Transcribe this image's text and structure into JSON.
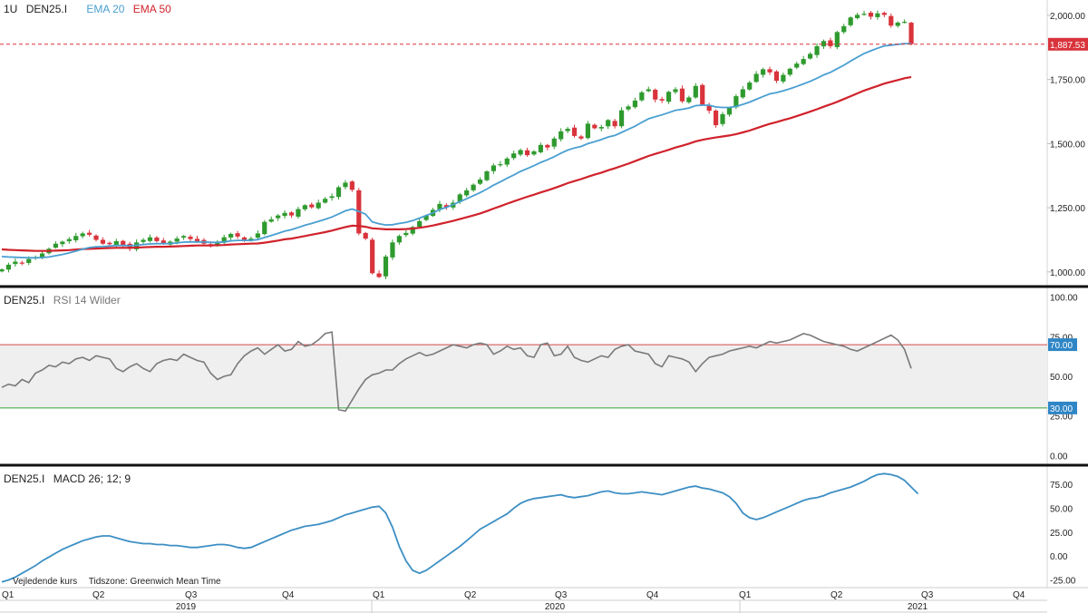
{
  "colors": {
    "up": "#2e9a2e",
    "down": "#d9333b",
    "ema20": "#4a9fd1",
    "ema50": "#d0222b",
    "rsi": "#7a7a7a",
    "macd": "#3d8fc4",
    "rsi_band": "#efefef",
    "rsi_upper_line": "#d44a4a",
    "rsi_lower_line": "#35a535",
    "last_price_badge": "#d9333b",
    "rsi_badge": "#2f86c6"
  },
  "header": {
    "interval": "1U",
    "symbol": "DEN25.I",
    "ema20_label": "EMA 20",
    "ema50_label": "EMA 50"
  },
  "rsi_header": {
    "symbol": "DEN25.I",
    "label": "RSI 14 Wilder"
  },
  "macd_header": {
    "symbol": "DEN25.I",
    "label": "MACD 26; 12; 9"
  },
  "footer": {
    "note": "Vejledende kurs",
    "timezone": "Tidszone: Greenwich Mean Time"
  },
  "chart_data": [
    {
      "type": "candlestick",
      "title": "DEN25.I",
      "interval": "1U",
      "ylim": [
        950,
        2060
      ],
      "yticks": [
        1000,
        1250,
        1500,
        1750,
        2000
      ],
      "ytick_labels": [
        "1,000.00",
        "1,250.00",
        "1,500.00",
        "1,750.00",
        "2,000.00"
      ],
      "last_price": 1887.53,
      "last_price_label": "1,887.53",
      "closes": [
        1010,
        1028,
        1040,
        1035,
        1050,
        1058,
        1072,
        1090,
        1110,
        1118,
        1128,
        1140,
        1150,
        1145,
        1125,
        1110,
        1108,
        1120,
        1105,
        1090,
        1115,
        1125,
        1135,
        1120,
        1110,
        1118,
        1130,
        1140,
        1128,
        1120,
        1110,
        1100,
        1118,
        1135,
        1148,
        1138,
        1125,
        1130,
        1150,
        1195,
        1205,
        1220,
        1230,
        1220,
        1245,
        1260,
        1252,
        1270,
        1285,
        1295,
        1330,
        1348,
        1320,
        1150,
        1130,
        995,
        980,
        1060,
        1115,
        1140,
        1152,
        1175,
        1198,
        1220,
        1242,
        1265,
        1252,
        1270,
        1302,
        1318,
        1340,
        1360,
        1392,
        1415,
        1420,
        1442,
        1462,
        1475,
        1455,
        1470,
        1495,
        1485,
        1520,
        1548,
        1558,
        1530,
        1520,
        1578,
        1560,
        1565,
        1592,
        1568,
        1630,
        1645,
        1668,
        1700,
        1712,
        1672,
        1668,
        1702,
        1712,
        1665,
        1680,
        1725,
        1652,
        1628,
        1572,
        1615,
        1640,
        1685,
        1712,
        1738,
        1772,
        1790,
        1778,
        1745,
        1768,
        1792,
        1812,
        1830,
        1850,
        1880,
        1900,
        1880,
        1935,
        1958,
        1992,
        2002,
        2006,
        1995,
        2008,
        2002,
        1960,
        1972,
        1975,
        1888
      ],
      "ema20": [
        1060,
        1058,
        1057,
        1056,
        1055,
        1055,
        1056,
        1058,
        1063,
        1068,
        1074,
        1081,
        1089,
        1095,
        1098,
        1099,
        1101,
        1103,
        1103,
        1102,
        1104,
        1107,
        1109,
        1110,
        1110,
        1111,
        1113,
        1116,
        1117,
        1117,
        1117,
        1115,
        1115,
        1117,
        1121,
        1123,
        1123,
        1123,
        1126,
        1134,
        1142,
        1150,
        1159,
        1165,
        1173,
        1182,
        1189,
        1197,
        1205,
        1214,
        1226,
        1238,
        1245,
        1236,
        1225,
        1195,
        1188,
        1183,
        1184,
        1189,
        1193,
        1200,
        1210,
        1220,
        1230,
        1243,
        1252,
        1262,
        1274,
        1285,
        1297,
        1309,
        1323,
        1338,
        1351,
        1365,
        1378,
        1392,
        1403,
        1414,
        1427,
        1437,
        1449,
        1463,
        1475,
        1483,
        1489,
        1500,
        1508,
        1516,
        1526,
        1532,
        1544,
        1556,
        1568,
        1583,
        1597,
        1605,
        1612,
        1621,
        1630,
        1634,
        1639,
        1648,
        1650,
        1650,
        1643,
        1641,
        1641,
        1645,
        1653,
        1662,
        1673,
        1684,
        1694,
        1699,
        1706,
        1714,
        1723,
        1733,
        1743,
        1755,
        1768,
        1778,
        1792,
        1806,
        1822,
        1837,
        1851,
        1862,
        1872,
        1881,
        1884,
        1887,
        1890,
        1890
      ],
      "ema50": [
        1088,
        1086,
        1085,
        1084,
        1083,
        1082,
        1082,
        1082,
        1083,
        1084,
        1085,
        1087,
        1089,
        1090,
        1091,
        1092,
        1093,
        1094,
        1094,
        1094,
        1095,
        1096,
        1097,
        1098,
        1098,
        1099,
        1100,
        1101,
        1102,
        1103,
        1103,
        1103,
        1104,
        1105,
        1107,
        1108,
        1109,
        1110,
        1111,
        1114,
        1118,
        1122,
        1127,
        1130,
        1135,
        1140,
        1145,
        1150,
        1155,
        1161,
        1168,
        1175,
        1180,
        1179,
        1176,
        1170,
        1168,
        1166,
        1166,
        1166,
        1167,
        1169,
        1172,
        1176,
        1181,
        1187,
        1193,
        1199,
        1206,
        1213,
        1220,
        1228,
        1237,
        1247,
        1256,
        1266,
        1275,
        1284,
        1293,
        1301,
        1310,
        1318,
        1327,
        1336,
        1346,
        1354,
        1362,
        1371,
        1379,
        1387,
        1396,
        1404,
        1413,
        1422,
        1432,
        1442,
        1452,
        1460,
        1468,
        1476,
        1485,
        1492,
        1500,
        1509,
        1515,
        1520,
        1524,
        1528,
        1532,
        1537,
        1544,
        1551,
        1560,
        1569,
        1577,
        1584,
        1592,
        1599,
        1607,
        1616,
        1625,
        1634,
        1644,
        1653,
        1663,
        1674,
        1685,
        1696,
        1707,
        1716,
        1725,
        1734,
        1741,
        1748,
        1755,
        1760
      ]
    },
    {
      "type": "line",
      "title": "RSI 14 Wilder",
      "ylim": [
        -5,
        105
      ],
      "yticks": [
        0,
        25,
        50,
        75,
        100
      ],
      "ytick_labels": [
        "0.00",
        "25.00",
        "50.00",
        "75.00",
        "100.00"
      ],
      "overbought": 70,
      "overbought_label": "70.00",
      "oversold": 30,
      "oversold_label": "30.00",
      "values": [
        43,
        45,
        44,
        48,
        46,
        52,
        54,
        57,
        56,
        59,
        58,
        61,
        62,
        60,
        63,
        62,
        61,
        55,
        53,
        56,
        58,
        55,
        53,
        58,
        60,
        61,
        60,
        64,
        62,
        60,
        59,
        52,
        48,
        50,
        51,
        58,
        63,
        66,
        68,
        64,
        67,
        70,
        66,
        67,
        72,
        69,
        70,
        73,
        77,
        78,
        29,
        28,
        35,
        42,
        48,
        51,
        52,
        54,
        54,
        58,
        61,
        63,
        65,
        63,
        64,
        66,
        68,
        70,
        69,
        68,
        70,
        71,
        70,
        64,
        66,
        69,
        67,
        68,
        63,
        62,
        70,
        71,
        63,
        64,
        69,
        62,
        60,
        59,
        61,
        63,
        62,
        67,
        69,
        70,
        66,
        65,
        64,
        58,
        56,
        63,
        62,
        61,
        59,
        53,
        58,
        62,
        63,
        64,
        66,
        67,
        68,
        69,
        68,
        70,
        72,
        71,
        72,
        73,
        75,
        77,
        76,
        74,
        72,
        71,
        70,
        69,
        67,
        66,
        68,
        70,
        72,
        74,
        76,
        73,
        67,
        55
      ]
    },
    {
      "type": "line",
      "title": "MACD 26; 12; 9",
      "ylim": [
        -32,
        92
      ],
      "yticks": [
        -25,
        0,
        25,
        50,
        75
      ],
      "ytick_labels": [
        "-25.00",
        "0.00",
        "25.00",
        "50.00",
        "75.00"
      ],
      "values": [
        -27,
        -25,
        -22,
        -18,
        -14,
        -10,
        -5,
        -1,
        3,
        7,
        10,
        13,
        16,
        18,
        20,
        21,
        21,
        19,
        17,
        15,
        14,
        13,
        13,
        12,
        12,
        11,
        11,
        10,
        9,
        9,
        10,
        11,
        12,
        12,
        11,
        9,
        8,
        9,
        12,
        15,
        18,
        21,
        24,
        27,
        29,
        31,
        32,
        33,
        35,
        37,
        40,
        43,
        45,
        47,
        49,
        51,
        52,
        45,
        30,
        10,
        -5,
        -15,
        -18,
        -15,
        -10,
        -5,
        0,
        5,
        10,
        16,
        22,
        28,
        32,
        36,
        40,
        44,
        50,
        55,
        58,
        60,
        61,
        62,
        63,
        64,
        62,
        61,
        62,
        63,
        65,
        67,
        68,
        66,
        65,
        65,
        66,
        67,
        66,
        65,
        64,
        66,
        68,
        70,
        72,
        73,
        71,
        70,
        68,
        66,
        62,
        55,
        45,
        40,
        38,
        40,
        43,
        46,
        49,
        52,
        55,
        58,
        60,
        61,
        63,
        66,
        68,
        70,
        72,
        75,
        78,
        82,
        85,
        86,
        85,
        83,
        79,
        72,
        65
      ]
    }
  ],
  "time_axis": {
    "quarters": [
      "Q1",
      "Q2",
      "Q3",
      "Q4",
      "Q1",
      "Q2",
      "Q3",
      "Q4",
      "Q1",
      "Q2",
      "Q3",
      "Q4"
    ],
    "years": [
      "2019",
      "2020",
      "2021"
    ]
  }
}
